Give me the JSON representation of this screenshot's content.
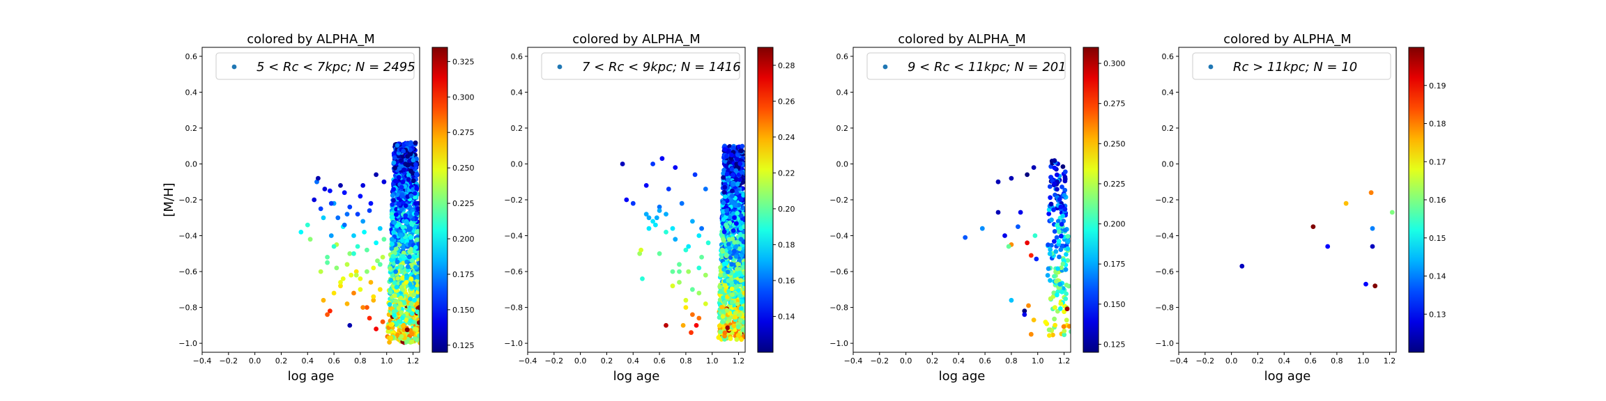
{
  "chart_data": [
    {
      "type": "scatter",
      "title": "colored by ALPHA_M",
      "xlabel": "log age",
      "ylabel": "[M/H]",
      "xlim": [
        -0.4,
        1.25
      ],
      "ylim": [
        -1.05,
        0.65
      ],
      "xticks": [
        "−0.4",
        "−0.2",
        "0.0",
        "0.2",
        "0.4",
        "0.6",
        "0.8",
        "1.0",
        "1.2"
      ],
      "yticks": [
        "−1.0",
        "−0.8",
        "−0.6",
        "−0.4",
        "−0.2",
        "0.0",
        "0.2",
        "0.4",
        "0.6"
      ],
      "legend": {
        "label": "5 < Rc < 7kpc;  N = 2495",
        "placement": "upper right"
      },
      "colorbar": {
        "cmap": "jet",
        "vmin": 0.12,
        "vmax": 0.335,
        "ticks": [
          0.125,
          0.15,
          0.175,
          0.2,
          0.225,
          0.25,
          0.275,
          0.3,
          0.325
        ],
        "ticklabels": [
          "0.125",
          "0.150",
          "0.175",
          "0.200",
          "0.225",
          "0.250",
          "0.275",
          "0.300",
          "0.325"
        ]
      },
      "n_points": 2495,
      "x": [
        0.35,
        0.4,
        0.42,
        0.45,
        0.47,
        0.5,
        0.52,
        0.55,
        0.57,
        0.6,
        0.62,
        0.65,
        0.67,
        0.7,
        0.72,
        0.75,
        0.77,
        0.8,
        0.82,
        0.85,
        0.87,
        0.9,
        0.92,
        0.95,
        0.97,
        0.48,
        0.53,
        0.58,
        0.63,
        0.68,
        0.73,
        0.78,
        0.83,
        0.88,
        0.93,
        0.98,
        0.5,
        0.55,
        0.6,
        0.65,
        0.7,
        0.75,
        0.8,
        0.85,
        0.9,
        0.95,
        0.52,
        0.57,
        0.62,
        0.67,
        0.72,
        0.77,
        0.82,
        0.87,
        0.92,
        0.97,
        0.6,
        0.7,
        0.8,
        0.9,
        0.55,
        0.65,
        0.75,
        0.85,
        0.95,
        0.72,
        0.82,
        0.92,
        0.58,
        0.68,
        0.78,
        0.88,
        0.98
      ],
      "y": [
        -0.38,
        -0.34,
        -0.42,
        -0.2,
        -0.1,
        -0.25,
        -0.3,
        -0.55,
        -0.15,
        -0.22,
        -0.45,
        -0.12,
        -0.35,
        -0.28,
        -0.5,
        -0.4,
        -0.6,
        -0.18,
        -0.32,
        -0.48,
        -0.26,
        -0.58,
        -0.44,
        -0.36,
        -0.52,
        -0.08,
        -0.14,
        -0.22,
        -0.3,
        -0.16,
        -0.62,
        -0.46,
        -0.38,
        -0.66,
        -0.54,
        -0.42,
        -0.6,
        -0.52,
        -0.46,
        -0.68,
        -0.56,
        -0.72,
        -0.64,
        -0.8,
        -0.76,
        -0.7,
        -0.76,
        -0.82,
        -0.58,
        -0.64,
        -0.9,
        -0.62,
        -0.8,
        -0.86,
        -0.92,
        -0.88,
        -0.72,
        -0.78,
        -0.7,
        -0.74,
        -0.84,
        -0.66,
        -0.5,
        -0.6,
        -0.56,
        -0.24,
        -0.12,
        -0.06,
        -0.4,
        -0.34,
        -0.28,
        -0.22,
        -0.1
      ],
      "c": [
        0.2,
        0.21,
        0.23,
        0.14,
        0.17,
        0.16,
        0.19,
        0.22,
        0.15,
        0.18,
        0.24,
        0.13,
        0.2,
        0.17,
        0.23,
        0.19,
        0.26,
        0.15,
        0.18,
        0.22,
        0.16,
        0.25,
        0.2,
        0.19,
        0.24,
        0.13,
        0.14,
        0.16,
        0.17,
        0.15,
        0.25,
        0.21,
        0.2,
        0.27,
        0.23,
        0.22,
        0.24,
        0.22,
        0.21,
        0.26,
        0.24,
        0.28,
        0.25,
        0.29,
        0.27,
        0.26,
        0.27,
        0.3,
        0.23,
        0.25,
        0.13,
        0.24,
        0.28,
        0.3,
        0.31,
        0.29,
        0.26,
        0.27,
        0.25,
        0.26,
        0.29,
        0.25,
        0.21,
        0.23,
        0.22,
        0.16,
        0.14,
        0.13,
        0.18,
        0.17,
        0.16,
        0.15,
        0.14
      ],
      "dense": {
        "xmin": 0.98,
        "xmax": 1.24,
        "ytop": 0.12,
        "ybottom": -1.0
      }
    },
    {
      "type": "scatter",
      "title": "colored by ALPHA_M",
      "xlabel": "log age",
      "ylabel": "",
      "xlim": [
        -0.4,
        1.25
      ],
      "ylim": [
        -1.05,
        0.65
      ],
      "xticks": [
        "−0.4",
        "−0.2",
        "0.0",
        "0.2",
        "0.4",
        "0.6",
        "0.8",
        "1.0",
        "1.2"
      ],
      "yticks": [
        "−1.0",
        "−0.8",
        "−0.6",
        "−0.4",
        "−0.2",
        "0.0",
        "0.2",
        "0.4",
        "0.6"
      ],
      "legend": {
        "label": "7 < Rc < 9kpc;  N = 1416",
        "placement": "upper right"
      },
      "colorbar": {
        "cmap": "jet",
        "vmin": 0.12,
        "vmax": 0.29,
        "ticks": [
          0.14,
          0.16,
          0.18,
          0.2,
          0.22,
          0.24,
          0.26,
          0.28
        ],
        "ticklabels": [
          "0.14",
          "0.16",
          "0.18",
          "0.20",
          "0.22",
          "0.24",
          "0.26",
          "0.28"
        ]
      },
      "n_points": 1416,
      "x": [
        0.32,
        0.35,
        0.4,
        0.45,
        0.47,
        0.5,
        0.52,
        0.55,
        0.57,
        0.6,
        0.62,
        0.65,
        0.67,
        0.7,
        0.72,
        0.75,
        0.77,
        0.8,
        0.82,
        0.85,
        0.87,
        0.9,
        0.92,
        0.95,
        0.97,
        0.5,
        0.55,
        0.6,
        0.65,
        0.7,
        0.75,
        0.8,
        0.85,
        0.9,
        0.95,
        0.6,
        0.7,
        0.8,
        0.9,
        0.65,
        0.75,
        0.85,
        0.95,
        0.72,
        0.82,
        0.92,
        0.88,
        0.9,
        0.78,
        0.84,
        0.46,
        0.52,
        0.58
      ],
      "y": [
        0.0,
        -0.2,
        -0.22,
        -0.5,
        -0.64,
        -0.12,
        -0.3,
        0.0,
        -0.34,
        -0.24,
        0.03,
        -0.28,
        -0.14,
        -0.36,
        -0.02,
        -0.56,
        -0.22,
        -0.48,
        -0.6,
        -0.32,
        -0.06,
        -0.4,
        -0.52,
        -0.14,
        -0.44,
        -0.28,
        -0.32,
        -0.26,
        -0.38,
        -0.6,
        -0.66,
        -0.76,
        -0.7,
        -0.58,
        -0.62,
        -0.5,
        -0.68,
        -0.8,
        -0.72,
        -0.9,
        -0.6,
        -0.84,
        -0.78,
        -0.42,
        -0.46,
        -0.36,
        -0.9,
        -0.86,
        -0.9,
        -0.94,
        -0.48,
        -0.36,
        -0.3
      ],
      "c": [
        0.13,
        0.14,
        0.15,
        0.21,
        0.19,
        0.14,
        0.17,
        0.15,
        0.18,
        0.16,
        0.14,
        0.17,
        0.15,
        0.18,
        0.14,
        0.2,
        0.16,
        0.19,
        0.21,
        0.17,
        0.15,
        0.18,
        0.2,
        0.16,
        0.19,
        0.17,
        0.18,
        0.17,
        0.19,
        0.2,
        0.21,
        0.22,
        0.2,
        0.19,
        0.21,
        0.2,
        0.22,
        0.23,
        0.21,
        0.28,
        0.2,
        0.25,
        0.22,
        0.17,
        0.18,
        0.16,
        0.27,
        0.25,
        0.24,
        0.26,
        0.22,
        0.18,
        0.17
      ],
      "dense": {
        "xmin": 1.02,
        "xmax": 1.24,
        "ytop": 0.1,
        "ybottom": -0.98
      }
    },
    {
      "type": "scatter",
      "title": "colored by ALPHA_M",
      "xlabel": "log age",
      "ylabel": "",
      "xlim": [
        -0.4,
        1.25
      ],
      "ylim": [
        -1.05,
        0.65
      ],
      "xticks": [
        "−0.4",
        "−0.2",
        "0.0",
        "0.2",
        "0.4",
        "0.6",
        "0.8",
        "1.0",
        "1.2"
      ],
      "yticks": [
        "−1.0",
        "−0.8",
        "−0.6",
        "−0.4",
        "−0.2",
        "0.0",
        "0.2",
        "0.4",
        "0.6"
      ],
      "legend": {
        "label": "9 < Rc < 11kpc;  N = 201",
        "placement": "upper right"
      },
      "colorbar": {
        "cmap": "jet",
        "vmin": 0.12,
        "vmax": 0.31,
        "ticks": [
          0.125,
          0.15,
          0.175,
          0.2,
          0.225,
          0.25,
          0.275,
          0.3
        ],
        "ticklabels": [
          "0.125",
          "0.150",
          "0.175",
          "0.200",
          "0.225",
          "0.250",
          "0.275",
          "0.300"
        ]
      },
      "n_points": 201,
      "x": [
        0.45,
        0.58,
        0.7,
        0.75,
        0.8,
        0.85,
        0.92,
        0.97,
        0.7,
        0.8,
        0.87,
        0.95,
        0.98,
        0.9,
        0.93,
        0.97,
        0.8,
        0.78,
        0.9,
        0.95,
        0.99,
        0.92
      ],
      "y": [
        -0.41,
        -0.36,
        -0.1,
        -0.4,
        -0.08,
        -0.35,
        -0.06,
        -0.02,
        -0.27,
        -0.45,
        -0.27,
        -0.51,
        -0.4,
        -0.82,
        -0.79,
        -0.87,
        -0.76,
        -0.46,
        -0.84,
        -0.95,
        -0.53,
        -0.44
      ],
      "c": [
        0.16,
        0.17,
        0.13,
        0.14,
        0.13,
        0.16,
        0.12,
        0.13,
        0.13,
        0.26,
        0.14,
        0.28,
        0.2,
        0.12,
        0.26,
        0.25,
        0.18,
        0.21,
        0.14,
        0.26,
        0.15,
        0.29
      ],
      "dense": {
        "xmin": 1.03,
        "xmax": 1.22,
        "ytop": 0.02,
        "ybottom": -0.97
      }
    },
    {
      "type": "scatter",
      "title": "colored by ALPHA_M",
      "xlabel": "log age",
      "ylabel": "",
      "xlim": [
        -0.4,
        1.25
      ],
      "ylim": [
        -1.05,
        0.65
      ],
      "xticks": [
        "−0.4",
        "−0.2",
        "0.0",
        "0.2",
        "0.4",
        "0.6",
        "0.8",
        "1.0",
        "1.2"
      ],
      "yticks": [
        "−1.0",
        "−0.8",
        "−0.6",
        "−0.4",
        "−0.2",
        "0.0",
        "0.2",
        "0.4",
        "0.6"
      ],
      "legend": {
        "label": "Rc > 11kpc;  N = 10",
        "placement": "upper right"
      },
      "colorbar": {
        "cmap": "jet",
        "vmin": 0.12,
        "vmax": 0.2,
        "ticks": [
          0.13,
          0.14,
          0.15,
          0.16,
          0.17,
          0.18,
          0.19
        ],
        "ticklabels": [
          "0.13",
          "0.14",
          "0.15",
          "0.16",
          "0.17",
          "0.18",
          "0.19"
        ]
      },
      "n_points": 10,
      "x": [
        0.08,
        0.62,
        0.73,
        0.87,
        1.02,
        1.06,
        1.07,
        1.07,
        1.09,
        1.22
      ],
      "y": [
        -0.57,
        -0.35,
        -0.46,
        -0.22,
        -0.67,
        -0.16,
        -0.36,
        -0.46,
        -0.68,
        -0.27
      ],
      "c": [
        0.125,
        0.2,
        0.13,
        0.175,
        0.13,
        0.18,
        0.14,
        0.125,
        0.2,
        0.16
      ]
    }
  ]
}
